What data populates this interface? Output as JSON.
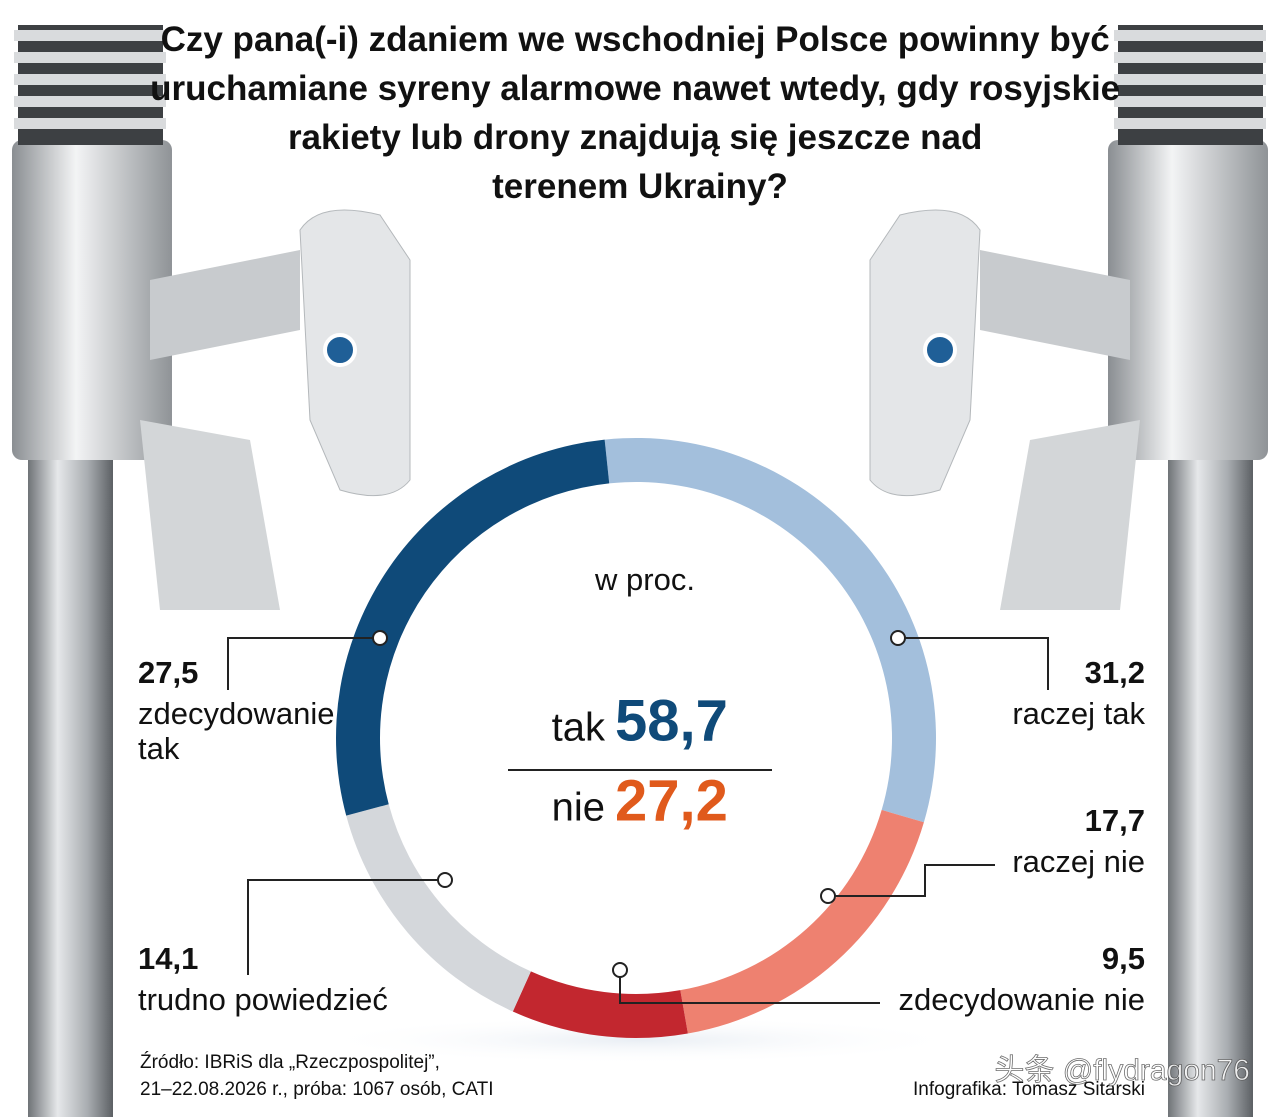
{
  "chart_data": {
    "type": "donut",
    "title": "Czy pana(-i) zdaniem we wschodniej Polsce powinny być uruchamiane syreny alarmowe nawet wtedy, gdy rosyjskie rakiety lub drony znajdują się jeszcze nad terenem Ukrainy?",
    "subtitle": "w proc.",
    "categories": [
      "raczej tak",
      "raczej nie",
      "zdecydowanie nie",
      "trudno powiedzieć",
      "zdecydowanie tak"
    ],
    "values": [
      31.2,
      17.7,
      9.5,
      14.1,
      27.5
    ],
    "value_labels": [
      "31,2",
      "17,7",
      "9,5",
      "14,1",
      "27,5"
    ],
    "colors": [
      "#a3bfdc",
      "#ee8170",
      "#c2272f",
      "#d4d7db",
      "#0f4a79"
    ],
    "summary": [
      {
        "name": "tak",
        "value": 58.7,
        "label": "58,7",
        "color": "#0f4a79"
      },
      {
        "name": "nie",
        "value": 27.2,
        "label": "27,2",
        "color": "#e05a1c"
      }
    ],
    "source": [
      "Źródło: IBRiS dla „Rzeczpospolitej”,",
      "21–22.08.2026 r., próba: 1067 osób, CATI"
    ],
    "credit": "Infografika: Tomasz Sitarski",
    "watermark": "头条 @flydragon76"
  }
}
